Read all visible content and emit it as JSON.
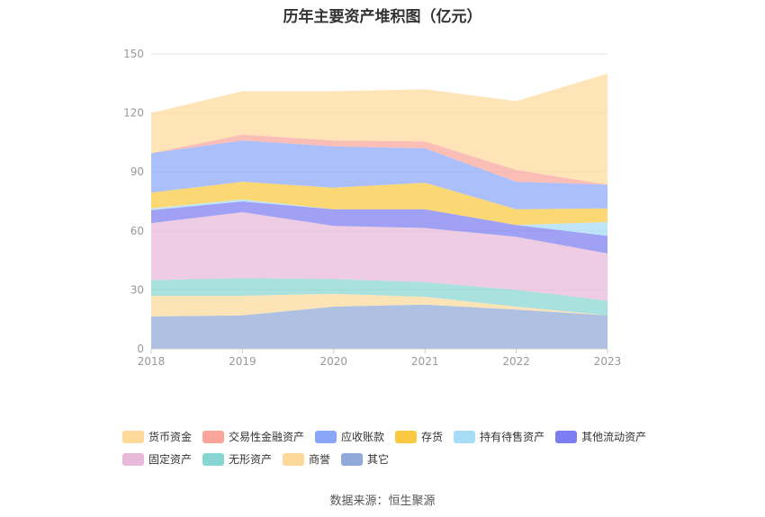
{
  "source_note": "数据来源：恒生聚源",
  "chart_data": {
    "type": "area",
    "stacked": true,
    "title": "历年主要资产堆积图（亿元）",
    "xlabel": "",
    "ylabel": "",
    "categories": [
      "2018",
      "2019",
      "2020",
      "2021",
      "2022",
      "2023"
    ],
    "ylim": [
      0,
      150
    ],
    "yticks": [
      0,
      30,
      60,
      90,
      120,
      150
    ],
    "grid": true,
    "legend_position": "bottom",
    "series": [
      {
        "name": "其它",
        "color": "#8fa9d8",
        "values": [
          16.5,
          17.0,
          21.5,
          22.5,
          20.0,
          17.0
        ]
      },
      {
        "name": "商誉",
        "color": "#fcd99a",
        "values": [
          10.5,
          10.0,
          6.5,
          4.0,
          1.5,
          0.0
        ]
      },
      {
        "name": "无形资产",
        "color": "#88d6d2",
        "values": [
          8.0,
          9.0,
          7.5,
          7.5,
          8.5,
          7.5
        ]
      },
      {
        "name": "固定资产",
        "color": "#e8b9d9",
        "values": [
          29.0,
          33.5,
          27.0,
          27.5,
          27.0,
          24.0
        ]
      },
      {
        "name": "其他流动资产",
        "color": "#7b7df0",
        "values": [
          6.5,
          5.5,
          8.5,
          9.5,
          6.0,
          9.0
        ]
      },
      {
        "name": "持有待售资产",
        "color": "#a6dcf5",
        "values": [
          1.0,
          1.0,
          0.0,
          0.0,
          0.0,
          7.0
        ]
      },
      {
        "name": "存货",
        "color": "#fbc93f",
        "values": [
          8.0,
          9.0,
          11.0,
          13.5,
          8.0,
          7.0
        ]
      },
      {
        "name": "应收账款",
        "color": "#8aa6f9",
        "values": [
          20.0,
          21.0,
          21.0,
          17.5,
          14.0,
          12.0
        ]
      },
      {
        "name": "交易性金融资产",
        "color": "#f9a59b",
        "values": [
          0.0,
          3.0,
          3.0,
          3.5,
          6.0,
          0.0
        ]
      },
      {
        "name": "货币资金",
        "color": "#fdd99a",
        "values": [
          20.5,
          22.0,
          25.0,
          26.5,
          35.0,
          56.5
        ]
      }
    ],
    "legend_order": [
      "货币资金",
      "交易性金融资产",
      "应收账款",
      "存货",
      "持有待售资产",
      "其他流动资产",
      "固定资产",
      "无形资产",
      "商誉",
      "其它"
    ]
  }
}
